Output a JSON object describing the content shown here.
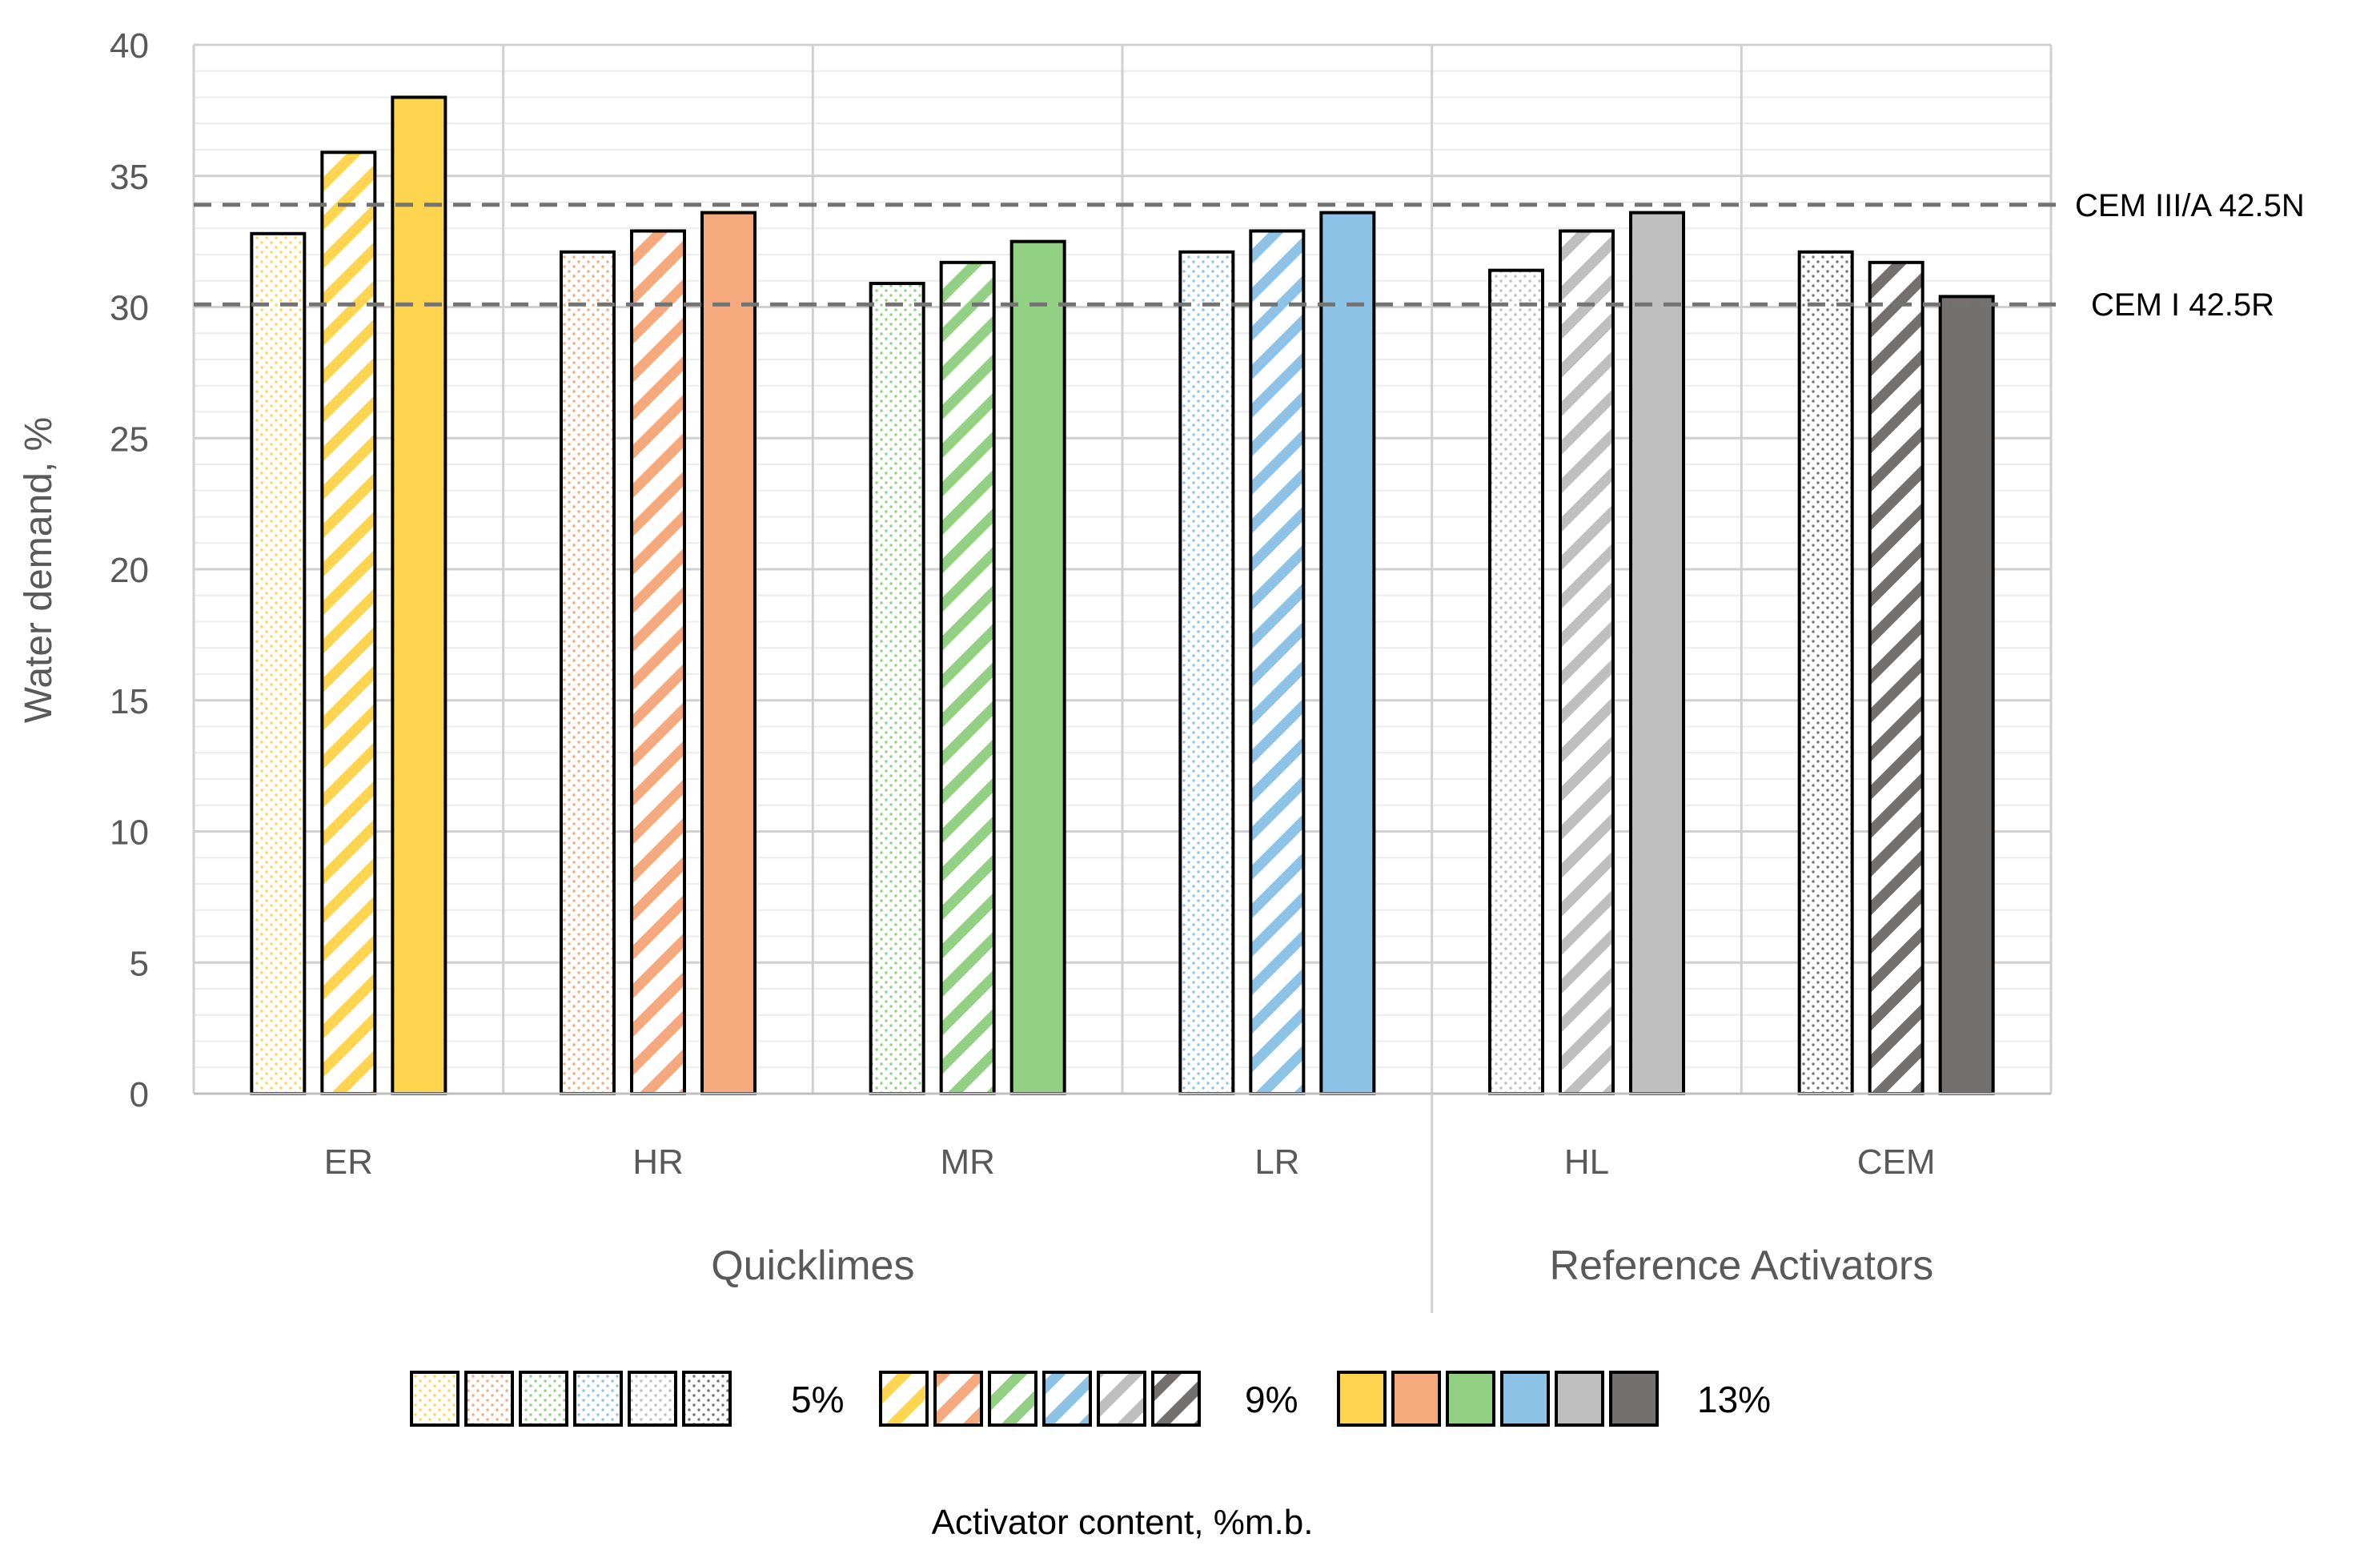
{
  "chart_data": {
    "type": "bar",
    "title": "",
    "ylabel": "Water demand, %",
    "xlabel": "Activator content, %m.b.",
    "ylim": [
      0,
      40
    ],
    "y_ticks": [
      "0",
      "5",
      "10",
      "15",
      "20",
      "25",
      "30",
      "35",
      "40"
    ],
    "categories": [
      "ER",
      "HR",
      "MR",
      "LR",
      "HL",
      "CEM"
    ],
    "category_colors": [
      "#FFD44F",
      "#F7A97E",
      "#92D184",
      "#8EC3E8",
      "#BFBFBF",
      "#757070"
    ],
    "category_groups": [
      {
        "label": "Quicklimes",
        "categories": [
          "ER",
          "HR",
          "MR",
          "LR"
        ]
      },
      {
        "label": "Reference Activators",
        "categories": [
          "HL",
          "CEM"
        ]
      }
    ],
    "series": [
      {
        "name": "5%",
        "pattern": "dots",
        "values": [
          32.8,
          32.1,
          30.9,
          32.1,
          31.4,
          32.1
        ]
      },
      {
        "name": "9%",
        "pattern": "diagonal-stripes",
        "values": [
          35.9,
          32.9,
          31.7,
          32.9,
          32.9,
          31.7
        ]
      },
      {
        "name": "13%",
        "pattern": "solid",
        "values": [
          38.0,
          33.6,
          32.5,
          33.6,
          33.6,
          30.4
        ]
      }
    ],
    "reference_lines": [
      {
        "label": "CEM III/A 42.5N",
        "value": 33.9
      },
      {
        "label": "CEM I 42.5R",
        "value": 30.1
      }
    ],
    "grid": true,
    "legend_position": "bottom"
  }
}
